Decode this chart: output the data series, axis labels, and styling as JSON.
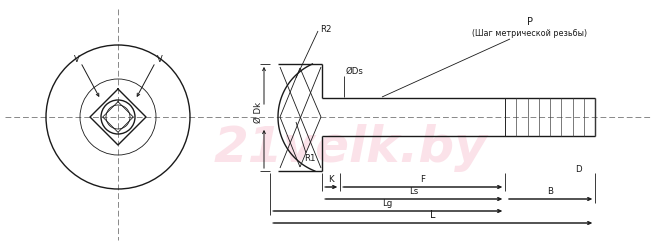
{
  "bg_color": "#ffffff",
  "line_color": "#1a1a1a",
  "wm_color": "#f5b8c8",
  "wm_alpha": 0.4,
  "wm_text": "21velk.by",
  "fig_width": 6.55,
  "fig_height": 2.51,
  "dpi": 100,
  "V": "V",
  "Dk": "Ø Dk",
  "Ds": "ØDs",
  "R1": "R1",
  "R2": "R2",
  "P": "P",
  "P_sub": "(Шаг метрической резьбы)",
  "K": "K",
  "F": "F",
  "Ls": "Ls",
  "Lg": "Lg",
  "B": "B",
  "L": "L",
  "D": "D"
}
